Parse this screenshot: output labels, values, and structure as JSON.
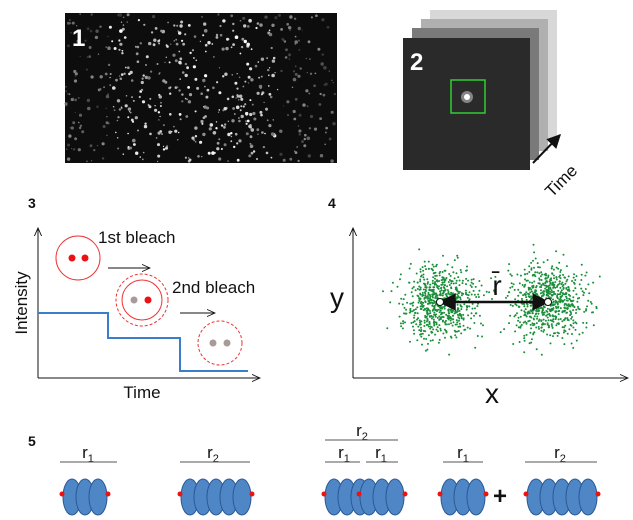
{
  "panel_1": {
    "label": "1"
  },
  "panel_2": {
    "label": "2",
    "time_label": "Time"
  },
  "panel_3": {
    "label": "3",
    "first_bleach": "1st bleach",
    "second_bleach": "2nd bleach",
    "y_axis": "Intensity",
    "x_axis": "Time"
  },
  "panel_4": {
    "label": "4",
    "y_axis": "y",
    "x_axis": "x",
    "distance": "r̄"
  },
  "panel_5": {
    "label": "5",
    "plus": "+",
    "labels": [
      {
        "base": "r",
        "sub": "1"
      },
      {
        "base": "r",
        "sub": "2"
      },
      {
        "base": "r",
        "sub": "2"
      },
      {
        "base": "r",
        "sub": "1"
      },
      {
        "base": "r",
        "sub": "1"
      },
      {
        "base": "r",
        "sub": "1"
      },
      {
        "base": "r",
        "sub": "2"
      }
    ]
  }
}
